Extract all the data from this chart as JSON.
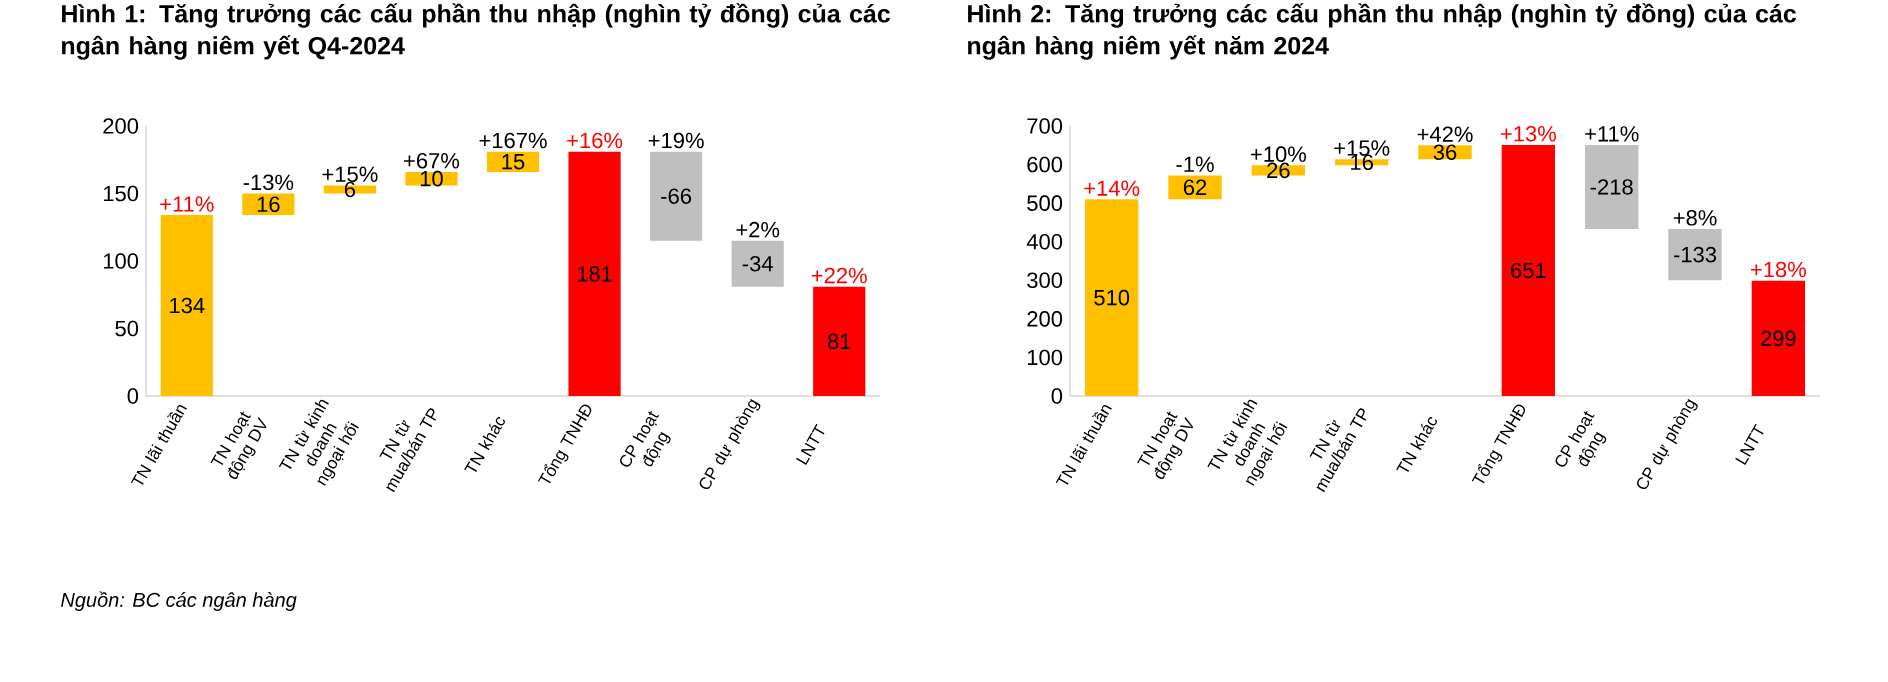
{
  "chart_data": [
    {
      "type": "bar",
      "title": "Hình 1: Tăng trưởng các cấu phần thu nhập (nghìn tỷ đồng) của các ngân hàng niêm yết Q4-2024",
      "categories": [
        "TN lãi thuần",
        "TN hoạt động DV",
        "TN từ kinh doanh ngoại hối",
        "TN từ mua/bán TP",
        "TN khác",
        "Tổng TNHĐ",
        "CP hoạt động",
        "CP dự phòng",
        "LNTT"
      ],
      "values": [
        134,
        16,
        6,
        10,
        15,
        181,
        -66,
        -34,
        81
      ],
      "base": [
        0,
        134,
        150,
        156,
        166,
        0,
        181,
        115,
        0
      ],
      "colors": [
        "#ffc000",
        "#ffc000",
        "#ffc000",
        "#ffc000",
        "#ffc000",
        "#ff0000",
        "#bfbfbf",
        "#bfbfbf",
        "#ff0000"
      ],
      "ylim": [
        0,
        200
      ],
      "yticks": [
        0,
        50,
        100,
        150,
        200
      ],
      "data_labels": true,
      "annotations": [
        {
          "text": "+11%",
          "x": "TN lãi thuần",
          "y": 134
        },
        {
          "text": "-13%",
          "x": "TN hoạt động DV",
          "y": 150
        },
        {
          "text": "+15%",
          "x": "TN từ kinh doanh ngoại hối",
          "y": 156
        },
        {
          "text": "+67%",
          "x": "TN từ mua/bán TP",
          "y": 166
        },
        {
          "text": "+167%",
          "x": "TN khác",
          "y": 181
        },
        {
          "text": "+16%",
          "x": "Tổng TNHĐ",
          "y": 181
        },
        {
          "text": "+19%",
          "x": "CP hoạt động",
          "y": 181
        },
        {
          "text": "+2%",
          "x": "CP dự phòng",
          "y": 115
        },
        {
          "text": "+22%",
          "x": "LNTT",
          "y": 81
        },
        "*Nguồn: BC các ngân hàng*"
      ]
    },
    {
      "type": "bar",
      "title": "Hình 2: Tăng trưởng các cấu phần thu nhập (nghìn tỷ đồng) của các ngân hàng niêm yết năm 2024",
      "categories": [
        "TN lãi thuần",
        "TN hoạt động DV",
        "TN từ kinh doanh ngoại hối",
        "TN từ mua/bán TP",
        "TN khác",
        "Tổng TNHĐ",
        "CP hoạt động",
        "CP dự phòng",
        "LNTT"
      ],
      "values": [
        510,
        62,
        26,
        16,
        36,
        651,
        -218,
        -133,
        299
      ],
      "base": [
        0,
        510,
        572,
        598,
        614,
        0,
        651,
        433,
        0
      ],
      "colors": [
        "#ffc000",
        "#ffc000",
        "#ffc000",
        "#ffc000",
        "#ffc000",
        "#ff0000",
        "#bfbfbf",
        "#bfbfbf",
        "#ff0000"
      ],
      "ylim": [
        0,
        700
      ],
      "yticks": [
        0,
        100,
        200,
        300,
        400,
        500,
        600,
        700
      ],
      "data_labels": true,
      "annotations": [
        {
          "text": "+14%",
          "x": "TN lãi thuần",
          "y": 510
        },
        {
          "text": "-1%",
          "x": "TN hoạt động DV",
          "y": 572
        },
        {
          "text": "+10%",
          "x": "TN từ kinh doanh ngoại hối",
          "y": 598
        },
        {
          "text": "+15%",
          "x": "TN từ mua/bán TP",
          "y": 614
        },
        {
          "text": "+42%",
          "x": "TN khác",
          "y": 650
        },
        {
          "text": "+13%",
          "x": "Tổng TNHĐ",
          "y": 651
        },
        {
          "text": "+11%",
          "x": "CP hoạt động",
          "y": 651
        },
        {
          "text": "+8%",
          "x": "CP dự phòng",
          "y": 433
        },
        {
          "text": "+18%",
          "x": "LNTT",
          "y": 299
        }
      ]
    }
  ]
}
